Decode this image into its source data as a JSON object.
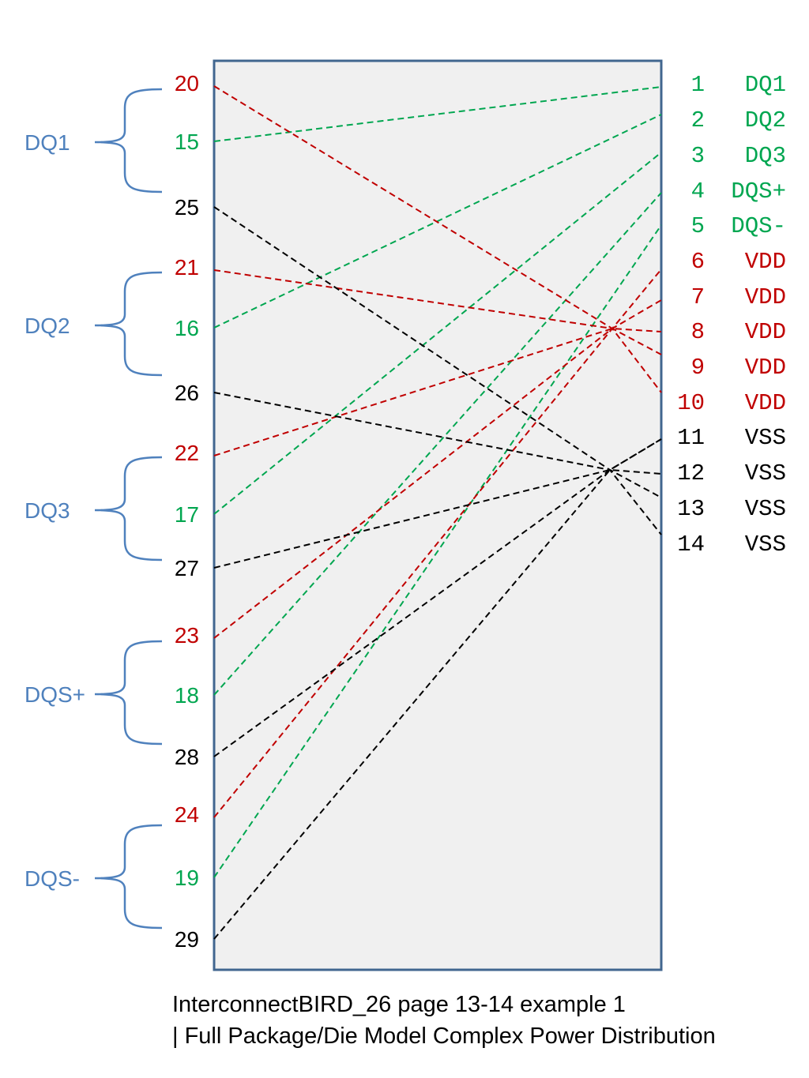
{
  "colors": {
    "signal": "#00a650",
    "power": "#c00000",
    "ground": "#000000",
    "group": "#4f81bd",
    "box_fill": "#f0f0f0",
    "box_border": "#41668f"
  },
  "groups": [
    {
      "name": "DQ1",
      "pins": [
        "20",
        "15",
        "25"
      ]
    },
    {
      "name": "DQ2",
      "pins": [
        "21",
        "16",
        "26"
      ]
    },
    {
      "name": "DQ3",
      "pins": [
        "22",
        "17",
        "27"
      ]
    },
    {
      "name": "DQS+",
      "pins": [
        "23",
        "18",
        "28"
      ]
    },
    {
      "name": "DQS-",
      "pins": [
        "24",
        "19",
        "29"
      ]
    }
  ],
  "left_pins": [
    {
      "num": "20",
      "kind": "power"
    },
    {
      "num": "15",
      "kind": "signal"
    },
    {
      "num": "25",
      "kind": "ground"
    },
    {
      "num": "21",
      "kind": "power"
    },
    {
      "num": "16",
      "kind": "signal"
    },
    {
      "num": "26",
      "kind": "ground"
    },
    {
      "num": "22",
      "kind": "power"
    },
    {
      "num": "17",
      "kind": "signal"
    },
    {
      "num": "27",
      "kind": "ground"
    },
    {
      "num": "23",
      "kind": "power"
    },
    {
      "num": "18",
      "kind": "signal"
    },
    {
      "num": "28",
      "kind": "ground"
    },
    {
      "num": "24",
      "kind": "power"
    },
    {
      "num": "19",
      "kind": "signal"
    },
    {
      "num": "29",
      "kind": "ground"
    }
  ],
  "right_pins": [
    {
      "num": "1",
      "name": "DQ1",
      "kind": "signal"
    },
    {
      "num": "2",
      "name": "DQ2",
      "kind": "signal"
    },
    {
      "num": "3",
      "name": "DQ3",
      "kind": "signal"
    },
    {
      "num": "4",
      "name": "DQS+",
      "kind": "signal"
    },
    {
      "num": "5",
      "name": "DQS-",
      "kind": "signal"
    },
    {
      "num": "6",
      "name": "VDD",
      "kind": "power"
    },
    {
      "num": "7",
      "name": "VDD",
      "kind": "power"
    },
    {
      "num": "8",
      "name": "VDD",
      "kind": "power"
    },
    {
      "num": "9",
      "name": "VDD",
      "kind": "power"
    },
    {
      "num": "10",
      "name": "VDD",
      "kind": "power"
    },
    {
      "num": "11",
      "name": "VSS",
      "kind": "ground"
    },
    {
      "num": "12",
      "name": "VSS",
      "kind": "ground"
    },
    {
      "num": "13",
      "name": "VSS",
      "kind": "ground"
    },
    {
      "num": "14",
      "name": "VSS",
      "kind": "ground"
    }
  ],
  "connections": [
    {
      "from": "15",
      "to": "1",
      "kind": "signal"
    },
    {
      "from": "16",
      "to": "2",
      "kind": "signal"
    },
    {
      "from": "17",
      "to": "3",
      "kind": "signal"
    },
    {
      "from": "18",
      "to": "4",
      "kind": "signal"
    },
    {
      "from": "19",
      "to": "5",
      "kind": "signal"
    },
    {
      "from": "20",
      "to": "10",
      "kind": "power",
      "via_node": "vdd"
    },
    {
      "from": "21",
      "to": "9",
      "kind": "power",
      "via_node": "vdd"
    },
    {
      "from": "22",
      "to": "8",
      "kind": "power",
      "via_node": "vdd"
    },
    {
      "from": "23",
      "to": "7",
      "kind": "power",
      "via_node": "vdd"
    },
    {
      "from": "24",
      "to": "6",
      "kind": "power",
      "via_node": "vdd"
    },
    {
      "from": "25",
      "to": "14",
      "kind": "ground",
      "via_node": "vss"
    },
    {
      "from": "26",
      "to": "13",
      "kind": "ground",
      "via_node": "vss"
    },
    {
      "from": "27",
      "to": "12",
      "kind": "ground",
      "via_node": "vss"
    },
    {
      "from": "28",
      "to": "11",
      "kind": "ground",
      "via_node": "vss"
    },
    {
      "from": "29",
      "to": "11",
      "kind": "ground",
      "via_node": "vss"
    }
  ],
  "caption": {
    "line1": "InterconnectBIRD_26 page 13-14 example 1",
    "line2": "| Full Package/Die Model Complex Power Distribution"
  }
}
